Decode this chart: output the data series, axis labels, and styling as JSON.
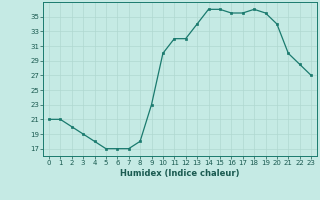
{
  "x": [
    0,
    1,
    2,
    3,
    4,
    5,
    6,
    7,
    8,
    9,
    10,
    11,
    12,
    13,
    14,
    15,
    16,
    17,
    18,
    19,
    20,
    21,
    22,
    23
  ],
  "y": [
    21,
    21,
    20,
    19,
    18,
    17,
    17,
    17,
    18,
    23,
    30,
    32,
    32,
    34,
    36,
    36,
    35.5,
    35.5,
    36,
    35.5,
    34,
    30,
    28.5,
    27
  ],
  "xlabel": "Humidex (Indice chaleur)",
  "xlim": [
    -0.5,
    23.5
  ],
  "ylim": [
    16,
    37
  ],
  "yticks": [
    17,
    19,
    21,
    23,
    25,
    27,
    29,
    31,
    33,
    35
  ],
  "xticks": [
    0,
    1,
    2,
    3,
    4,
    5,
    6,
    7,
    8,
    9,
    10,
    11,
    12,
    13,
    14,
    15,
    16,
    17,
    18,
    19,
    20,
    21,
    22,
    23
  ],
  "line_color": "#1a7a6e",
  "marker_color": "#1a7a6e",
  "bg_color": "#c5eae4",
  "grid_color": "#b0d8d0"
}
